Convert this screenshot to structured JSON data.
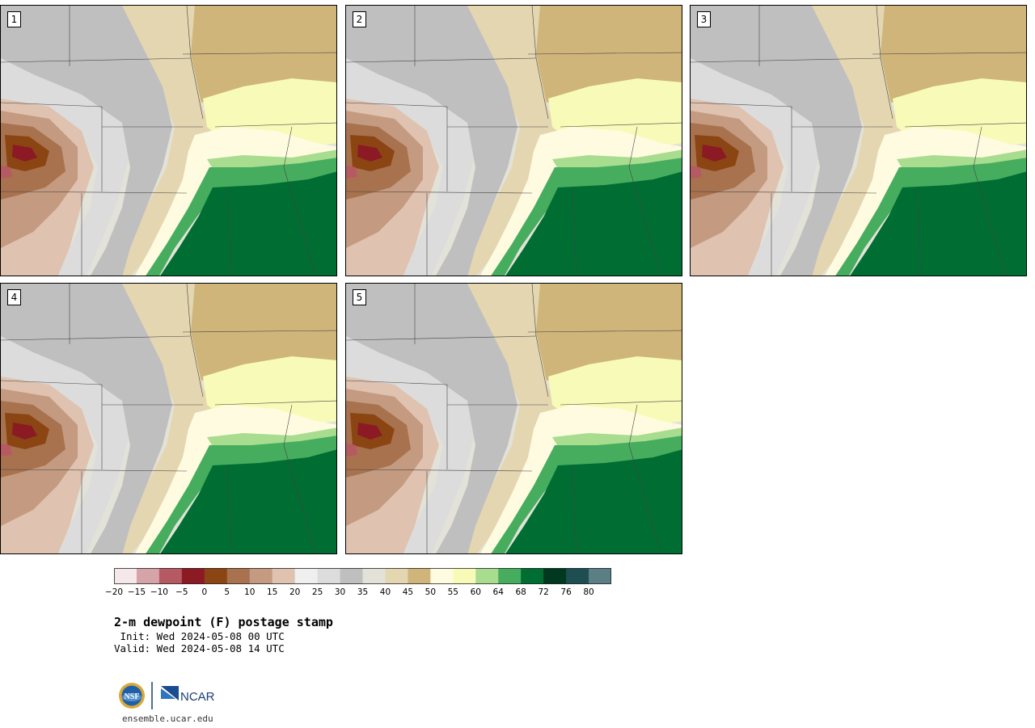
{
  "panels": [
    {
      "label": "1"
    },
    {
      "label": "2"
    },
    {
      "label": "3"
    },
    {
      "label": "4"
    },
    {
      "label": "5"
    }
  ],
  "colorbar": {
    "colors": [
      "#f5e8ea",
      "#d6a3a8",
      "#b55a62",
      "#8b1a24",
      "#8a4513",
      "#a8724e",
      "#c49b80",
      "#dfc2b0",
      "#efefef",
      "#dcdcdc",
      "#bfbfbf",
      "#e3e2d8",
      "#e4d6b1",
      "#cfb579",
      "#fffbe0",
      "#f7fbb7",
      "#a8dc8f",
      "#46ad5e",
      "#006d33",
      "#003820",
      "#1f4e52",
      "#5a7f85"
    ],
    "ticks": [
      "−20",
      "−15",
      "−10",
      "−5",
      "0",
      "5",
      "10",
      "15",
      "20",
      "25",
      "30",
      "35",
      "40",
      "45",
      "50",
      "55",
      "60",
      "64",
      "68",
      "72",
      "76",
      "80"
    ]
  },
  "title": "2-m dewpoint (F) postage stamp",
  "init": " Init: Wed 2024-05-08 00 UTC",
  "valid": "Valid: Wed 2024-05-08 14 UTC",
  "logos": {
    "nsf": "NSF",
    "ncar": "NCAR"
  },
  "site": "ensemble.ucar.edu"
}
